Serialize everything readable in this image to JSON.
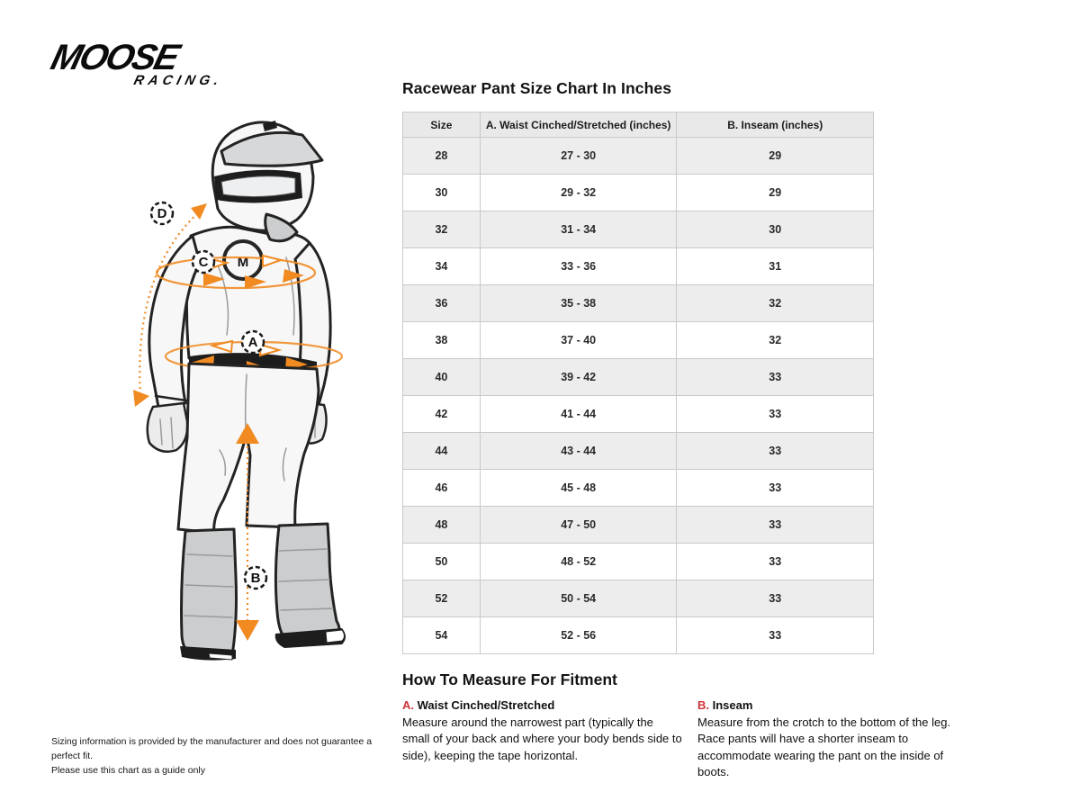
{
  "logo": {
    "line1": "MOOSE",
    "line2": "RACING."
  },
  "title": "Racewear Pant Size Chart In Inches",
  "chart_data": {
    "type": "table",
    "title": "Racewear Pant Size Chart In Inches",
    "columns": [
      "Size",
      "A. Waist Cinched/Stretched (inches)",
      "B. Inseam (inches)"
    ],
    "rows": [
      [
        "28",
        "27 - 30",
        "29"
      ],
      [
        "30",
        "29 - 32",
        "29"
      ],
      [
        "32",
        "31 - 34",
        "30"
      ],
      [
        "34",
        "33 - 36",
        "31"
      ],
      [
        "36",
        "35 - 38",
        "32"
      ],
      [
        "38",
        "37 - 40",
        "32"
      ],
      [
        "40",
        "39 - 42",
        "33"
      ],
      [
        "42",
        "41 - 44",
        "33"
      ],
      [
        "44",
        "43 - 44",
        "33"
      ],
      [
        "46",
        "45 - 48",
        "33"
      ],
      [
        "48",
        "47 - 50",
        "33"
      ],
      [
        "50",
        "48 - 52",
        "33"
      ],
      [
        "52",
        "50 - 54",
        "33"
      ],
      [
        "54",
        "52 - 56",
        "33"
      ]
    ]
  },
  "how_to": {
    "heading": "How To Measure For Fitment",
    "items": [
      {
        "letter": "A.",
        "title": " Waist Cinched/Stretched",
        "text": "Measure around the narrowest part (typically the small of your back and where your body bends side to side), keeping the tape horizontal."
      },
      {
        "letter": "B.",
        "title": " Inseam",
        "text": "Measure from the crotch to the bottom of the leg. Race pants will have a shorter inseam to accommodate wearing the pant on the inside of boots."
      }
    ]
  },
  "diagram": {
    "markers": {
      "d": "D",
      "c": "C",
      "a": "A",
      "b": "B"
    },
    "logo_letter": "M"
  },
  "disclaimer": {
    "line1": "Sizing information is provided by the manufacturer and does not guarantee a perfect fit.",
    "line2": "Please use this chart as a guide only"
  },
  "colors": {
    "accent_orange": "#F08A21",
    "accent_red": "#CE3439",
    "table_row_alt": "#EDEDED",
    "table_border": "#C9C9C9"
  }
}
